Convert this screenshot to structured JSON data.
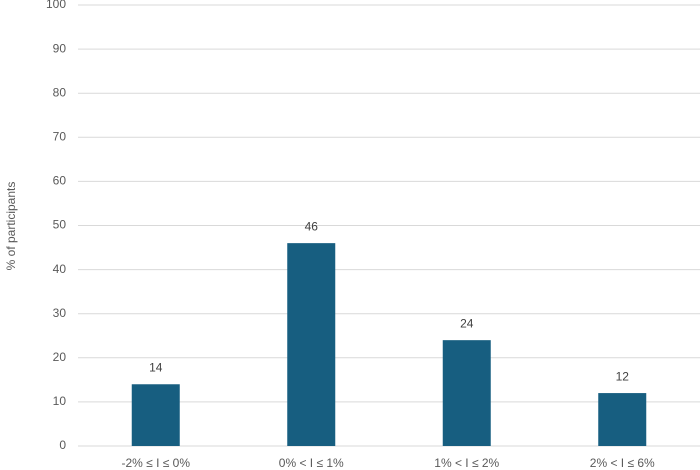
{
  "chart_data": {
    "type": "bar",
    "y_label": "% of participants",
    "categories": [
      "-2% ≤ I ≤ 0%",
      "0% < I ≤ 1%",
      "1% < I  ≤ 2%",
      "2% < I ≤ 6%"
    ],
    "values": [
      14,
      46,
      24,
      12
    ],
    "color": "#175e80",
    "ylim": [
      0,
      100
    ],
    "yticks": [
      0,
      10,
      20,
      30,
      40,
      50,
      60,
      70,
      80,
      90,
      100
    ],
    "grid": true
  }
}
